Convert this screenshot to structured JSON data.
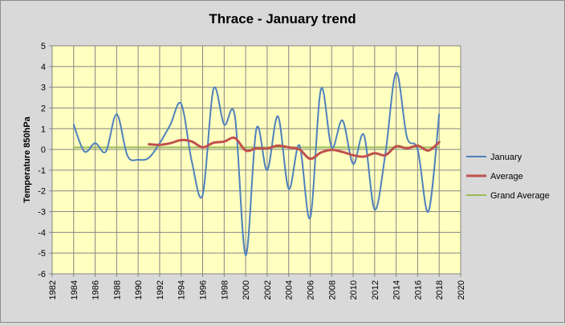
{
  "chart_data": {
    "type": "line",
    "title": "Thrace - January trend",
    "xlabel": "",
    "ylabel": "Temperature 850hPa",
    "xlim": [
      1982,
      2020
    ],
    "ylim": [
      -6,
      5
    ],
    "xticks": [
      1982,
      1984,
      1986,
      1988,
      1990,
      1992,
      1994,
      1996,
      1998,
      2000,
      2002,
      2004,
      2006,
      2008,
      2010,
      2012,
      2014,
      2016,
      2018,
      2020
    ],
    "yticks": [
      -6,
      -5,
      -4,
      -3,
      -2,
      -1,
      0,
      1,
      2,
      3,
      4,
      5
    ],
    "plot_background": "#ffffc0",
    "grid": true,
    "smooth": true,
    "legend_position": "right",
    "series": [
      {
        "name": "January",
        "color": "#4f81bd",
        "x": [
          1984,
          1985,
          1986,
          1987,
          1988,
          1989,
          1990,
          1991,
          1992,
          1993,
          1994,
          1995,
          1996,
          1997,
          1998,
          1999,
          2000,
          2001,
          2002,
          2003,
          2004,
          2005,
          2006,
          2007,
          2008,
          2009,
          2010,
          2011,
          2012,
          2013,
          2014,
          2015,
          2016,
          2017,
          2018
        ],
        "values": [
          1.2,
          -0.1,
          0.3,
          -0.1,
          1.7,
          -0.3,
          -0.5,
          -0.4,
          0.3,
          1.2,
          2.2,
          -0.6,
          -2.2,
          2.9,
          1.2,
          1.6,
          -5.1,
          1.0,
          -1.0,
          1.6,
          -1.9,
          0.2,
          -3.3,
          2.9,
          0.1,
          1.4,
          -0.7,
          0.7,
          -2.9,
          -0.2,
          3.7,
          0.6,
          0.0,
          -3.0,
          1.7
        ]
      },
      {
        "name": "Average",
        "color": "#c0504d",
        "x": [
          1991,
          1992,
          1993,
          1994,
          1995,
          1996,
          1997,
          1998,
          1999,
          2000,
          2001,
          2002,
          2003,
          2004,
          2005,
          2006,
          2007,
          2008,
          2009,
          2010,
          2011,
          2012,
          2013,
          2014,
          2015,
          2016,
          2017,
          2018
        ],
        "values": [
          0.25,
          0.22,
          0.3,
          0.45,
          0.38,
          0.1,
          0.32,
          0.38,
          0.55,
          -0.05,
          0.05,
          0.05,
          0.18,
          0.1,
          0.0,
          -0.45,
          -0.15,
          -0.02,
          -0.12,
          -0.28,
          -0.35,
          -0.18,
          -0.28,
          0.15,
          0.05,
          0.18,
          -0.05,
          0.35
        ]
      },
      {
        "name": "Grand Average",
        "color": "#9bbb59",
        "x": [
          1984,
          2018
        ],
        "values": [
          0.1,
          0.1
        ]
      }
    ]
  }
}
